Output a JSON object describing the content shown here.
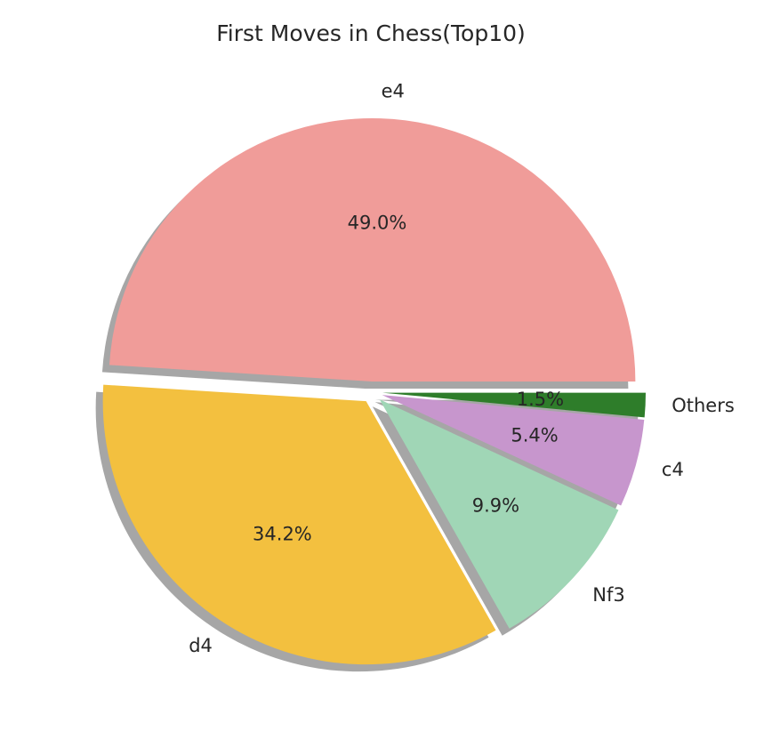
{
  "chart_data": {
    "type": "pie",
    "title": "First Moves in Chess(Top10)",
    "slices": [
      {
        "label": "e4",
        "percent": 49.0,
        "value_label": "49.0%",
        "color": "#f09c99",
        "exploded": true
      },
      {
        "label": "d4",
        "percent": 34.2,
        "value_label": "34.2%",
        "color": "#f3c03f",
        "exploded": true
      },
      {
        "label": "Nf3",
        "percent": 9.9,
        "value_label": "9.9%",
        "color": "#a0d6b6",
        "exploded": true
      },
      {
        "label": "c4",
        "percent": 5.4,
        "value_label": "5.4%",
        "color": "#c796cd",
        "exploded": true
      },
      {
        "label": "Others",
        "percent": 1.5,
        "value_label": "1.5%",
        "color": "#2e7d2a",
        "exploded": true
      }
    ],
    "start_angle_deg": 0,
    "direction": "counterclockwise",
    "shadow": true,
    "legend": "none"
  }
}
